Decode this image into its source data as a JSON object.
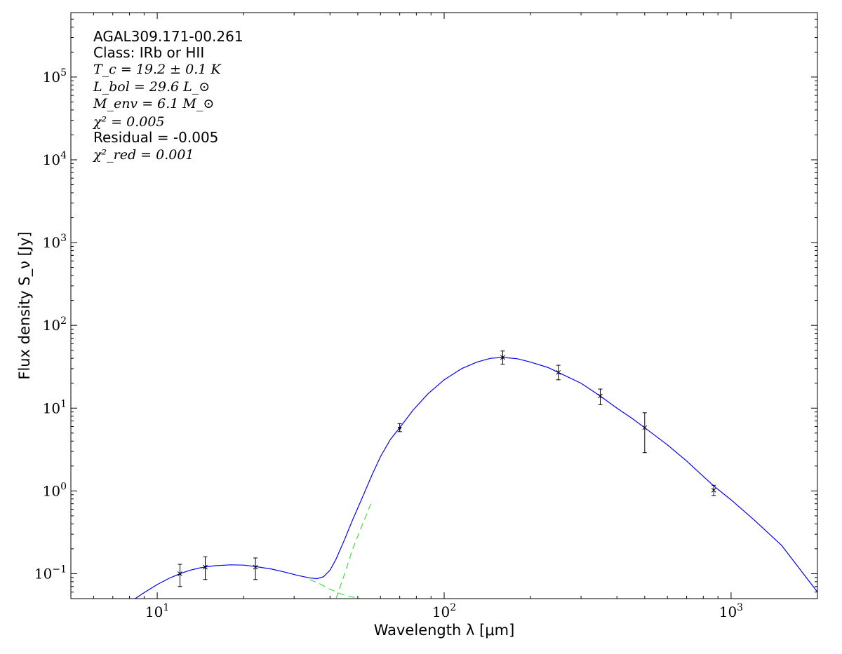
{
  "chart_data": {
    "type": "line",
    "x_scale": "log",
    "y_scale": "log",
    "xlim": [
      5,
      2000
    ],
    "ylim": [
      0.05,
      600000
    ],
    "grid": false,
    "xlabel": "Wavelength λ [μm]",
    "ylabel": "Flux density S_ν [Jy]",
    "x_ticks": [
      {
        "value": 10,
        "base": "10",
        "exp": "1"
      },
      {
        "value": 100,
        "base": "10",
        "exp": "2"
      },
      {
        "value": 1000,
        "base": "10",
        "exp": "3"
      }
    ],
    "y_ticks": [
      {
        "value": 0.1,
        "base": "10",
        "exp": "−1"
      },
      {
        "value": 1,
        "base": "10",
        "exp": "0"
      },
      {
        "value": 10,
        "base": "10",
        "exp": "1"
      },
      {
        "value": 100,
        "base": "10",
        "exp": "2"
      },
      {
        "value": 1000,
        "base": "10",
        "exp": "3"
      },
      {
        "value": 10000,
        "base": "10",
        "exp": "4"
      },
      {
        "value": 100000,
        "base": "10",
        "exp": "5"
      }
    ],
    "annotations": {
      "source": "AGAL309.171-00.261",
      "class": "Class: IRb or HII",
      "tc": "T_c = 19.2 ± 0.1 K",
      "lbol": "L_bol = 29.6 L_⊙",
      "menv": "M_env = 6.1 M_⊙",
      "chi2": "χ² = 0.005",
      "residual": "Residual = -0.005",
      "chi2red": "χ²_red = 0.001"
    },
    "points": [
      {
        "x": 12,
        "y": 0.1,
        "ylo": 0.07,
        "yhi": 0.13,
        "marker": "x"
      },
      {
        "x": 14.7,
        "y": 0.12,
        "ylo": 0.085,
        "yhi": 0.16,
        "marker": "x"
      },
      {
        "x": 22,
        "y": 0.12,
        "ylo": 0.085,
        "yhi": 0.155,
        "marker": "x"
      },
      {
        "x": 70,
        "y": 5.7,
        "ylo": 5.2,
        "yhi": 6.5,
        "marker": "triangle-down"
      },
      {
        "x": 160,
        "y": 41,
        "ylo": 34,
        "yhi": 49,
        "marker": "x"
      },
      {
        "x": 250,
        "y": 27,
        "ylo": 22,
        "yhi": 33,
        "marker": "x"
      },
      {
        "x": 350,
        "y": 14,
        "ylo": 11,
        "yhi": 17,
        "marker": "x"
      },
      {
        "x": 500,
        "y": 5.8,
        "ylo": 2.9,
        "yhi": 8.8,
        "marker": "x"
      },
      {
        "x": 870,
        "y": 1.02,
        "ylo": 0.88,
        "yhi": 1.17,
        "marker": "x"
      }
    ],
    "series": [
      {
        "color": "#0000ff",
        "style": "solid",
        "x": [
          8.3,
          9,
          10,
          11,
          12,
          13,
          14,
          15,
          16,
          18,
          20,
          22,
          25,
          28,
          31,
          34,
          36,
          38,
          40,
          42,
          45,
          48,
          52,
          56,
          60,
          65,
          70,
          78,
          88,
          100,
          115,
          130,
          145,
          160,
          180,
          200,
          230,
          250,
          300,
          350,
          400,
          450,
          500,
          600,
          700,
          800,
          870,
          1000,
          1200,
          1500,
          2000
        ],
        "y": [
          0.049,
          0.059,
          0.074,
          0.088,
          0.1,
          0.11,
          0.117,
          0.122,
          0.125,
          0.128,
          0.127,
          0.122,
          0.114,
          0.104,
          0.095,
          0.089,
          0.087,
          0.092,
          0.11,
          0.15,
          0.26,
          0.45,
          0.85,
          1.55,
          2.6,
          4.2,
          5.8,
          9.5,
          15,
          22,
          30,
          36,
          40,
          41,
          39.5,
          36,
          31,
          27,
          20,
          14,
          10,
          7.6,
          5.8,
          3.6,
          2.3,
          1.5,
          1.15,
          0.78,
          0.45,
          0.22,
          0.06
        ]
      },
      {
        "color": "#44dd44",
        "style": "dashed",
        "x": [
          34,
          37,
          40,
          43,
          47,
          51
        ],
        "y": [
          0.085,
          0.075,
          0.065,
          0.058,
          0.053,
          0.05
        ]
      },
      {
        "color": "#44dd44",
        "style": "dashed",
        "x": [
          42,
          45,
          48,
          52,
          56
        ],
        "y": [
          0.05,
          0.1,
          0.2,
          0.4,
          0.75
        ]
      }
    ]
  }
}
